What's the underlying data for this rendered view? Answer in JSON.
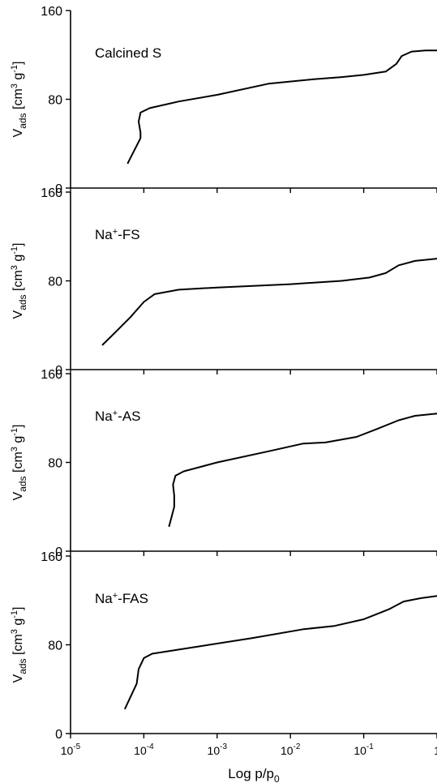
{
  "figure": {
    "xlabel_main": "Log p/p",
    "xlabel_sub": "0",
    "ylabel_main": "V",
    "ylabel_sub": "ads",
    "ylabel_unit_a": " [cm",
    "ylabel_unit_b": "3",
    "ylabel_unit_c": " g",
    "ylabel_unit_d": "-1",
    "ylabel_unit_e": "]",
    "x_ticks": [
      {
        "base": "10",
        "exp": "-5"
      },
      {
        "base": "10",
        "exp": "-4"
      },
      {
        "base": "10",
        "exp": "-3"
      },
      {
        "base": "10",
        "exp": "-2"
      },
      {
        "base": "10",
        "exp": "-1"
      },
      {
        "base": "1",
        "exp": ""
      }
    ]
  },
  "chart_data": [
    {
      "type": "line",
      "name": "Calcined S",
      "label": {
        "main": "Calcined S",
        "sup": "",
        "rest": ""
      },
      "xscale": "log",
      "xlim": [
        1e-05,
        1
      ],
      "ylim": [
        0,
        160
      ],
      "yticks": [
        0,
        80,
        160
      ],
      "points": [
        [
          6e-05,
          22
        ],
        [
          9e-05,
          45
        ],
        [
          9e-05,
          50
        ],
        [
          8.5e-05,
          60
        ],
        [
          9e-05,
          68
        ],
        [
          0.00012,
          72
        ],
        [
          0.0003,
          78
        ],
        [
          0.001,
          84
        ],
        [
          0.005,
          94
        ],
        [
          0.02,
          98
        ],
        [
          0.05,
          100
        ],
        [
          0.1,
          102
        ],
        [
          0.2,
          105
        ],
        [
          0.28,
          112
        ],
        [
          0.33,
          119
        ],
        [
          0.45,
          123
        ],
        [
          0.7,
          124
        ],
        [
          1,
          124
        ]
      ]
    },
    {
      "type": "line",
      "name": "Na+-FS",
      "label": {
        "main": "Na",
        "sup": "+",
        "rest": "-FS"
      },
      "xscale": "log",
      "xlim": [
        1e-05,
        1
      ],
      "ylim": [
        0,
        160
      ],
      "yticks": [
        0,
        80,
        160
      ],
      "points": [
        [
          2.7e-05,
          22
        ],
        [
          4e-05,
          33
        ],
        [
          6.5e-05,
          47
        ],
        [
          0.0001,
          61
        ],
        [
          0.00014,
          68
        ],
        [
          0.0003,
          72
        ],
        [
          0.001,
          74
        ],
        [
          0.01,
          77
        ],
        [
          0.05,
          80
        ],
        [
          0.12,
          83
        ],
        [
          0.2,
          87
        ],
        [
          0.3,
          94
        ],
        [
          0.5,
          98
        ],
        [
          1,
          100
        ]
      ]
    },
    {
      "type": "line",
      "name": "Na+-AS",
      "label": {
        "main": "Na",
        "sup": "+",
        "rest": "-AS"
      },
      "xscale": "log",
      "xlim": [
        1e-05,
        1
      ],
      "ylim": [
        0,
        160
      ],
      "yticks": [
        0,
        80,
        160
      ],
      "points": [
        [
          0.00022,
          22
        ],
        [
          0.00026,
          40
        ],
        [
          0.00026,
          50
        ],
        [
          0.00025,
          60
        ],
        [
          0.00027,
          68
        ],
        [
          0.00035,
          72
        ],
        [
          0.001,
          80
        ],
        [
          0.005,
          90
        ],
        [
          0.015,
          97
        ],
        [
          0.03,
          98
        ],
        [
          0.08,
          103
        ],
        [
          0.15,
          110
        ],
        [
          0.3,
          118
        ],
        [
          0.5,
          122
        ],
        [
          1,
          124
        ]
      ]
    },
    {
      "type": "line",
      "name": "Na+-FAS",
      "label": {
        "main": "Na",
        "sup": "+",
        "rest": "-FAS"
      },
      "xscale": "log",
      "xlim": [
        1e-05,
        1
      ],
      "ylim": [
        0,
        160
      ],
      "yticks": [
        0,
        80,
        160
      ],
      "points": [
        [
          5.5e-05,
          22
        ],
        [
          8e-05,
          45
        ],
        [
          8.5e-05,
          58
        ],
        [
          0.0001,
          68
        ],
        [
          0.00013,
          72
        ],
        [
          0.0005,
          78
        ],
        [
          0.003,
          86
        ],
        [
          0.015,
          94
        ],
        [
          0.04,
          97
        ],
        [
          0.1,
          103
        ],
        [
          0.22,
          112
        ],
        [
          0.35,
          119
        ],
        [
          0.6,
          122
        ],
        [
          1,
          124
        ]
      ]
    }
  ]
}
